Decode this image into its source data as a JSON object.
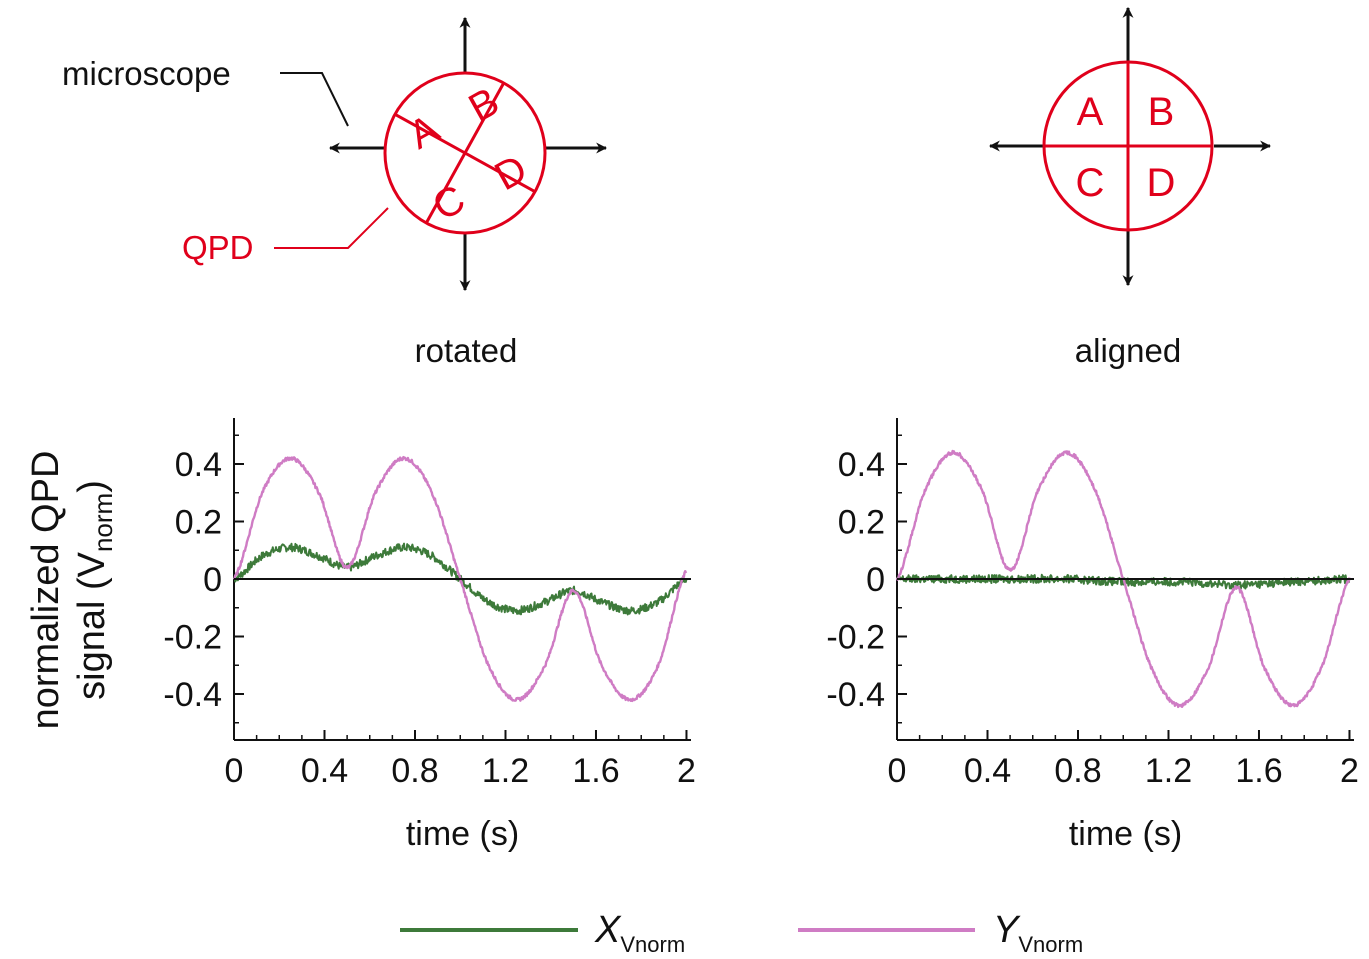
{
  "diagrams": {
    "rotated": {
      "caption": "rotated",
      "quadrants": [
        "A",
        "B",
        "C",
        "D"
      ],
      "microscope_label": "microscope",
      "qpd_label": "QPD"
    },
    "aligned": {
      "caption": "aligned",
      "quadrants": [
        "A",
        "B",
        "C",
        "D"
      ]
    }
  },
  "colors": {
    "qpd": "#e0001b",
    "x_series": "#3d7a3a",
    "y_series": "#cf7cc4",
    "axes": "#111111"
  },
  "ylabel": {
    "line1": "normalized QPD",
    "line2_pre": "signal (V",
    "line2_sub": "norm",
    "line2_post": ")"
  },
  "legend": [
    {
      "base": "X",
      "sub": "Vnorm",
      "color": "#3d7a3a"
    },
    {
      "base": "Y",
      "sub": "Vnorm",
      "color": "#cf7cc4"
    }
  ],
  "chart_data": [
    {
      "type": "line",
      "title": "",
      "xlabel": "time (s)",
      "ylabel": "normalized QPD signal (Vnorm)",
      "xlim": [
        0,
        2.02
      ],
      "ylim": [
        -0.56,
        0.56
      ],
      "xticks": [
        0,
        0.4,
        0.8,
        1.2,
        1.6,
        2
      ],
      "xtick_labels": [
        "0",
        "0.4",
        "0.8",
        "1.2",
        "1.6",
        "2"
      ],
      "yticks": [
        -0.4,
        -0.2,
        0,
        0.2,
        0.4
      ],
      "ytick_labels": [
        "-0.4",
        "-0.2",
        "0",
        "0.2",
        "0.4"
      ],
      "zero_line": true,
      "series": [
        {
          "name": "X_Vnorm",
          "color": "#3d7a3a",
          "x": [
            0,
            0.125,
            0.25,
            0.375,
            0.5,
            0.625,
            0.75,
            0.875,
            1.0,
            1.125,
            1.25,
            1.375,
            1.5,
            1.625,
            1.75,
            1.875,
            2.0
          ],
          "y": [
            0.0,
            0.08,
            0.11,
            0.08,
            0.04,
            0.08,
            0.11,
            0.08,
            0.0,
            -0.08,
            -0.11,
            -0.08,
            -0.04,
            -0.08,
            -0.11,
            -0.08,
            0.0
          ]
        },
        {
          "name": "Y_Vnorm",
          "color": "#cf7cc4",
          "x": [
            0,
            0.125,
            0.25,
            0.375,
            0.5,
            0.625,
            0.75,
            0.875,
            1.0,
            1.125,
            1.25,
            1.375,
            1.5,
            1.625,
            1.75,
            1.875,
            2.0
          ],
          "y": [
            0.0,
            0.3,
            0.42,
            0.3,
            0.04,
            0.3,
            0.42,
            0.3,
            0.0,
            -0.3,
            -0.42,
            -0.3,
            -0.04,
            -0.3,
            -0.42,
            -0.3,
            0.03
          ]
        }
      ]
    },
    {
      "type": "line",
      "title": "",
      "xlabel": "time (s)",
      "ylabel": "",
      "xlim": [
        0,
        2.02
      ],
      "ylim": [
        -0.56,
        0.56
      ],
      "xticks": [
        0,
        0.4,
        0.8,
        1.2,
        1.6,
        2
      ],
      "xtick_labels": [
        "0",
        "0.4",
        "0.8",
        "1.2",
        "1.6",
        "2"
      ],
      "yticks": [
        -0.4,
        -0.2,
        0,
        0.2,
        0.4
      ],
      "ytick_labels": [
        "-0.4",
        "-0.2",
        "0",
        "0.2",
        "0.4"
      ],
      "zero_line": true,
      "series": [
        {
          "name": "X_Vnorm",
          "color": "#3d7a3a",
          "x": [
            0,
            0.25,
            0.5,
            0.75,
            1.0,
            1.25,
            1.5,
            1.75,
            2.0
          ],
          "y": [
            0.0,
            0.0,
            0.0,
            0.0,
            -0.01,
            -0.01,
            -0.02,
            -0.01,
            0.0
          ]
        },
        {
          "name": "Y_Vnorm",
          "color": "#cf7cc4",
          "x": [
            0,
            0.125,
            0.25,
            0.375,
            0.5,
            0.625,
            0.75,
            0.875,
            1.0,
            1.125,
            1.25,
            1.375,
            1.5,
            1.625,
            1.75,
            1.875,
            2.0
          ],
          "y": [
            0.0,
            0.31,
            0.44,
            0.31,
            0.03,
            0.31,
            0.44,
            0.31,
            0.0,
            -0.31,
            -0.44,
            -0.31,
            -0.03,
            -0.31,
            -0.44,
            -0.31,
            0.0
          ]
        }
      ]
    }
  ]
}
